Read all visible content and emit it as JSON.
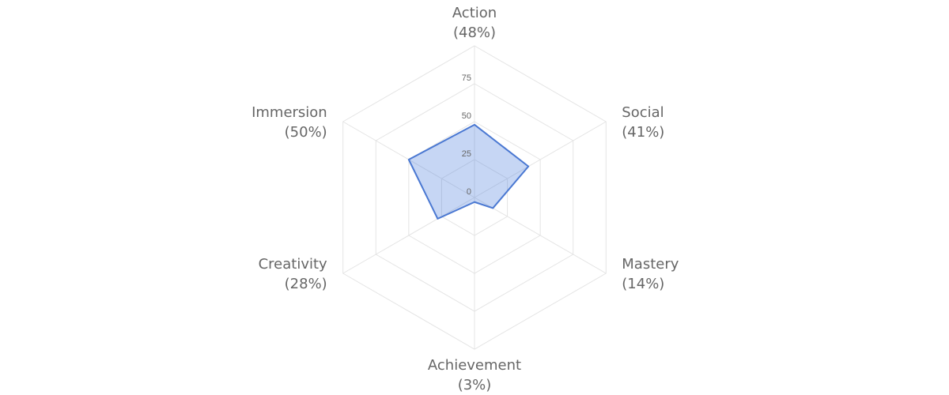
{
  "chart_data": {
    "type": "radar",
    "title": "",
    "categories": [
      "Action",
      "Social",
      "Mastery",
      "Achievement",
      "Creativity",
      "Immersion"
    ],
    "category_labels": [
      "(48%)",
      "(41%)",
      "(14%)",
      "(3%)",
      "(28%)",
      "(50%)"
    ],
    "series": [
      {
        "values": [
          48,
          41,
          14,
          3,
          28,
          50
        ],
        "color": "#4a78d2",
        "fill": "rgba(79,129,220,0.32)"
      }
    ],
    "radial_range": [
      0,
      100
    ],
    "radial_ticks": [
      0,
      25,
      50,
      75
    ],
    "grid": true,
    "legend": "none"
  }
}
